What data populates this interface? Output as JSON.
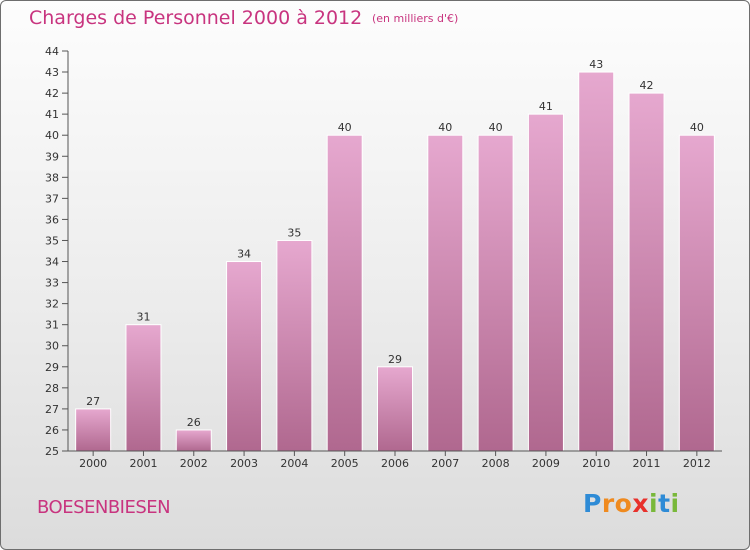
{
  "header": {
    "title": "Charges de Personnel 2000 à 2012",
    "subtitle": "(en milliers d'€)"
  },
  "footer": {
    "commune": "BOESENBIESEN",
    "logo_text": "Proxiti"
  },
  "colors": {
    "title": "#c8347f",
    "bar_top": "#e6a8cf",
    "bar_bottom": "#b0688f",
    "axis": "#555555"
  },
  "chart_data": {
    "type": "bar",
    "title": "Charges de Personnel 2000 à 2012",
    "subtitle": "(en milliers d'€)",
    "categories": [
      "2000",
      "2001",
      "2002",
      "2003",
      "2004",
      "2005",
      "2006",
      "2007",
      "2008",
      "2009",
      "2010",
      "2011",
      "2012"
    ],
    "values": [
      27,
      31,
      26,
      34,
      35,
      40,
      29,
      40,
      40,
      41,
      43,
      42,
      40
    ],
    "ylim": [
      25,
      44
    ],
    "yticks": [
      25,
      26,
      27,
      28,
      29,
      30,
      31,
      32,
      33,
      34,
      35,
      36,
      37,
      38,
      39,
      40,
      41,
      42,
      43,
      44
    ],
    "grid": false,
    "legend": "none",
    "data_labels": true
  }
}
